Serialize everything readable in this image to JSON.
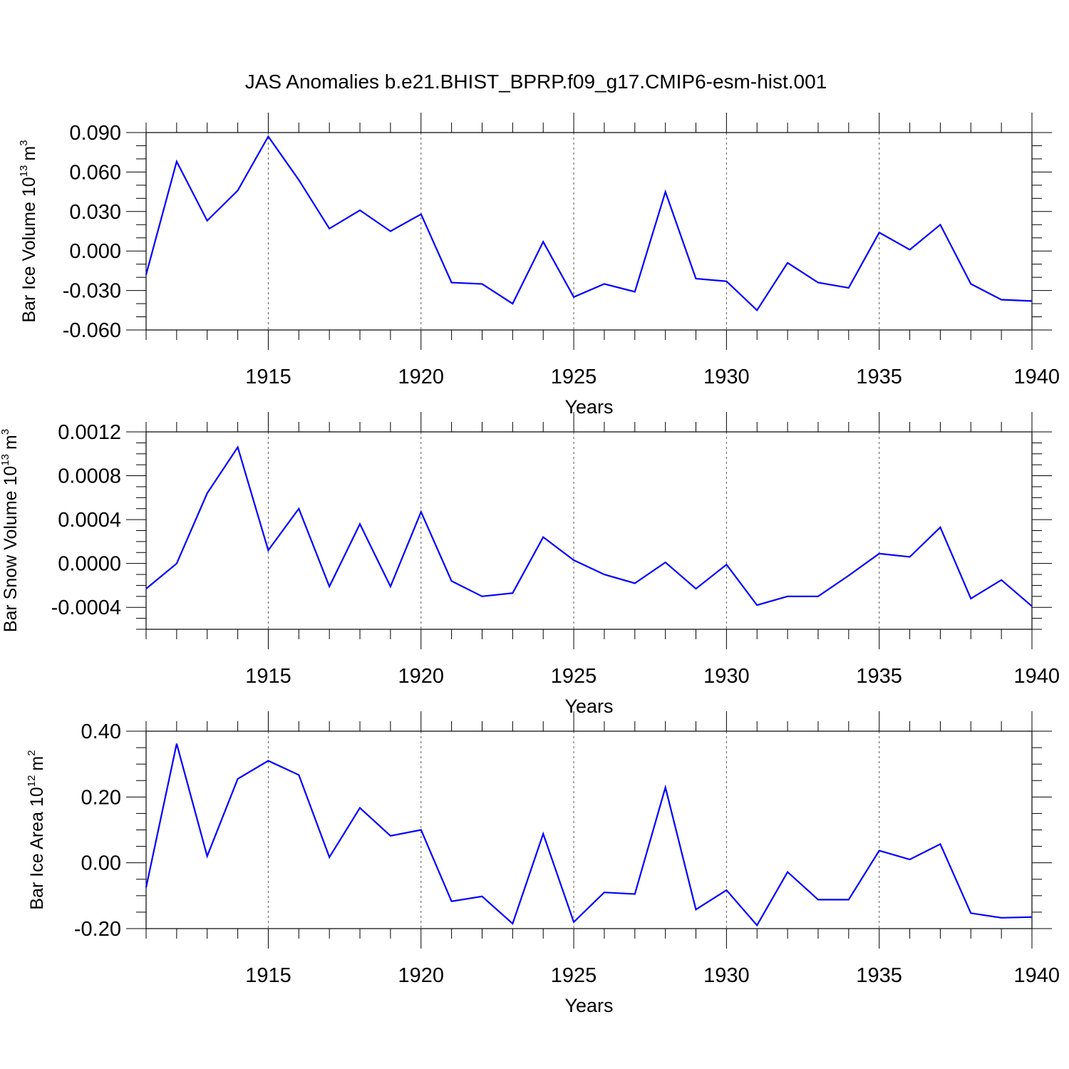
{
  "title": "JAS Anomalies b.e21.BHIST_BPRP.f09_g17.CMIP6-esm-hist.001",
  "chart_data": [
    {
      "type": "line",
      "ylabel": "Bar Ice Volume 10",
      "ylabel_exp": "13",
      "ylabel_unit": "m",
      "ylabel_unit_exp": "3",
      "xlabel": "Years",
      "xlim": [
        1911,
        1940
      ],
      "ylim": [
        -0.06,
        0.09
      ],
      "yticks": [
        -0.06,
        -0.03,
        0.0,
        0.03,
        0.06,
        0.09
      ],
      "yticklabels": [
        "-0.060",
        "-0.030",
        "0.000",
        "0.030",
        "0.060",
        "0.090"
      ],
      "xticks": [
        1915,
        1920,
        1925,
        1930,
        1935,
        1940
      ],
      "xticklabels": [
        "1915",
        "1920",
        "1925",
        "1930",
        "1935",
        "1940"
      ],
      "grid": "dashed vertical at x ticks",
      "color": "#0000ff",
      "x": [
        1911,
        1912,
        1913,
        1914,
        1915,
        1916,
        1917,
        1918,
        1919,
        1920,
        1921,
        1922,
        1923,
        1924,
        1925,
        1926,
        1927,
        1928,
        1929,
        1930,
        1931,
        1932,
        1933,
        1934,
        1935,
        1936,
        1937,
        1938,
        1939,
        1940
      ],
      "values": [
        -0.018,
        0.068,
        0.023,
        0.046,
        0.087,
        0.054,
        0.017,
        0.031,
        0.015,
        0.028,
        -0.024,
        -0.025,
        -0.04,
        0.007,
        -0.035,
        -0.025,
        -0.031,
        0.045,
        -0.021,
        -0.023,
        -0.045,
        -0.009,
        -0.024,
        -0.028,
        0.014,
        0.001,
        0.02,
        -0.025,
        -0.037,
        -0.038
      ]
    },
    {
      "type": "line",
      "ylabel": "Bar Snow Volume 10",
      "ylabel_exp": "13",
      "ylabel_unit": "m",
      "ylabel_unit_exp": "3",
      "xlabel": "Years",
      "xlim": [
        1911,
        1940
      ],
      "ylim": [
        -0.0006,
        0.0012
      ],
      "yticks": [
        -0.0004,
        0.0,
        0.0004,
        0.0008,
        0.0012
      ],
      "yticklabels": [
        "-0.0004",
        "0.0000",
        "0.0004",
        "0.0008",
        "0.0012"
      ],
      "xticks": [
        1915,
        1920,
        1925,
        1930,
        1935,
        1940
      ],
      "xticklabels": [
        "1915",
        "1920",
        "1925",
        "1930",
        "1935",
        "1940"
      ],
      "grid": "dashed vertical at x ticks",
      "color": "#0000ff",
      "x": [
        1911,
        1912,
        1913,
        1914,
        1915,
        1916,
        1917,
        1918,
        1919,
        1920,
        1921,
        1922,
        1923,
        1924,
        1925,
        1926,
        1927,
        1928,
        1929,
        1930,
        1931,
        1932,
        1933,
        1934,
        1935,
        1936,
        1937,
        1938,
        1939,
        1940
      ],
      "values": [
        -0.00023,
        0.0,
        0.00064,
        0.00106,
        0.00012,
        0.0005,
        -0.00021,
        0.00036,
        -0.00021,
        0.00047,
        -0.00016,
        -0.0003,
        -0.00027,
        0.00024,
        3e-05,
        -0.0001,
        -0.00018,
        1e-05,
        -0.00023,
        -1e-05,
        -0.00038,
        -0.0003,
        -0.0003,
        -0.00011,
        9e-05,
        6e-05,
        0.00033,
        -0.00032,
        -0.00015,
        -0.00039
      ]
    },
    {
      "type": "line",
      "ylabel": "Bar Ice Area 10",
      "ylabel_exp": "12",
      "ylabel_unit": "m",
      "ylabel_unit_exp": "2",
      "xlabel": "Years",
      "xlim": [
        1911,
        1940
      ],
      "ylim": [
        -0.2,
        0.4
      ],
      "yticks": [
        -0.2,
        0.0,
        0.2,
        0.4
      ],
      "yticklabels": [
        "-0.20",
        "0.00",
        "0.20",
        "0.40"
      ],
      "xticks": [
        1915,
        1920,
        1925,
        1930,
        1935,
        1940
      ],
      "xticklabels": [
        "1915",
        "1920",
        "1925",
        "1930",
        "1935",
        "1940"
      ],
      "grid": "dashed vertical at x ticks",
      "color": "#0000ff",
      "x": [
        1911,
        1912,
        1913,
        1914,
        1915,
        1916,
        1917,
        1918,
        1919,
        1920,
        1921,
        1922,
        1923,
        1924,
        1925,
        1926,
        1927,
        1928,
        1929,
        1930,
        1931,
        1932,
        1933,
        1934,
        1935,
        1936,
        1937,
        1938,
        1939,
        1940
      ],
      "values": [
        -0.075,
        0.362,
        0.02,
        0.255,
        0.31,
        0.267,
        0.017,
        0.167,
        0.082,
        0.1,
        -0.117,
        -0.102,
        -0.185,
        0.088,
        -0.18,
        -0.09,
        -0.095,
        0.229,
        -0.142,
        -0.083,
        -0.19,
        -0.028,
        -0.112,
        -0.112,
        0.037,
        0.01,
        0.057,
        -0.153,
        -0.167,
        -0.165
      ]
    }
  ]
}
